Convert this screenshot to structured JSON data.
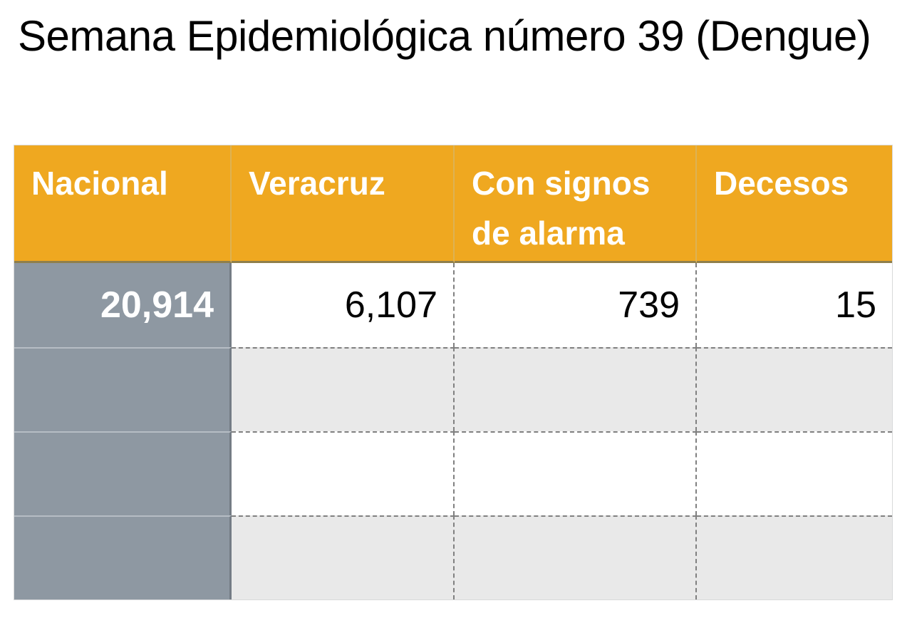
{
  "title": "Semana Epidemiológica número 39 (Dengue)",
  "colors": {
    "page_bg": "#ffffff",
    "title_text": "#000000",
    "header_bg": "#efa820",
    "header_text": "#ffffff",
    "header_divider": "#ddb253",
    "header_border_bottom": "#8f7f4b",
    "first_col_bg": "#8e98a2",
    "first_col_text": "#ffffff",
    "first_col_edge": "#747c85",
    "first_col_divider": "#b6bdc4",
    "row_bg": "#ffffff",
    "row_alt_bg": "#e9e9e9",
    "grid_dash": "#808080",
    "body_text": "#000000"
  },
  "chart_data": {
    "type": "table",
    "title": "Semana Epidemiológica número 39 (Dengue)",
    "columns": [
      "Nacional",
      "Veracruz",
      "Con signos de alarma",
      "Decesos"
    ],
    "rows": [
      [
        "20,914",
        "6,107",
        "739",
        "15"
      ],
      [
        "",
        "",
        "",
        ""
      ],
      [
        "",
        "",
        "",
        ""
      ],
      [
        "",
        "",
        "",
        ""
      ]
    ],
    "values": {
      "nacional": 20914,
      "veracruz": 6107,
      "con_signos_de_alarma": 739,
      "decesos": 15
    },
    "layout": {
      "grid": "dashed",
      "header_position": "top",
      "first_column_highlight": true
    }
  }
}
